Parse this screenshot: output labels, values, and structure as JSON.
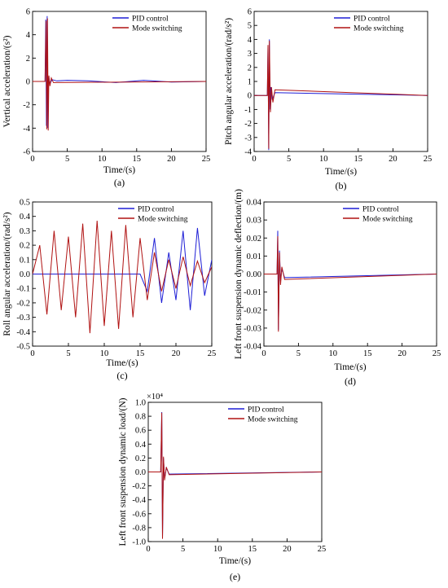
{
  "chart_data": [
    {
      "type": "line",
      "panel": "(a)",
      "ylabel": "Vertical acceleration/(s²)",
      "xlabel": "Time/(s)",
      "xlim": [
        0,
        25
      ],
      "ylim": [
        -6,
        6
      ],
      "xticks": [
        0,
        5,
        10,
        15,
        20,
        25
      ],
      "xtick_labels": [
        "0",
        "5",
        "10",
        "15",
        "20",
        "25"
      ],
      "yticks": [
        -6,
        -4,
        -2,
        0,
        2,
        4,
        6
      ],
      "ytick_labels": [
        "-6",
        "-4",
        "-2",
        "0",
        "2",
        "4",
        "6"
      ],
      "legend": "top-right",
      "series": [
        {
          "name": "PID control",
          "color": "#1f1fd6",
          "x": [
            0,
            1.8,
            1.9,
            2.0,
            2.1,
            2.2,
            2.3,
            2.5,
            2.8,
            3.5,
            5,
            8,
            12,
            16,
            20,
            25
          ],
          "y": [
            0,
            0,
            5.3,
            -3.8,
            5.6,
            -4.0,
            0.4,
            -0.2,
            0.15,
            0.05,
            0.1,
            0.05,
            -0.1,
            0.1,
            -0.05,
            0
          ]
        },
        {
          "name": "Mode switching",
          "color": "#b01212",
          "x": [
            0,
            1.8,
            1.95,
            2.05,
            2.15,
            2.25,
            2.35,
            2.5,
            2.7,
            3.0,
            25
          ],
          "y": [
            0,
            0,
            5.2,
            -4.1,
            5.4,
            -4.2,
            0.5,
            -0.4,
            0.3,
            -0.1,
            0
          ]
        }
      ]
    },
    {
      "type": "line",
      "panel": "(b)",
      "ylabel": "Pitch angular acceleration/(rad/s²)",
      "xlabel": "Time/(s)",
      "xlim": [
        0,
        25
      ],
      "ylim": [
        -4,
        6
      ],
      "xticks": [
        0,
        5,
        10,
        15,
        20,
        25
      ],
      "xtick_labels": [
        "0",
        "5",
        "10",
        "15",
        "20",
        "25"
      ],
      "yticks": [
        -4,
        -3,
        -2,
        -1,
        0,
        1,
        2,
        3,
        4,
        5,
        6
      ],
      "ytick_labels": [
        "-4",
        "-3",
        "-2",
        "-1",
        "0",
        "1",
        "2",
        "3",
        "4",
        "5",
        "6"
      ],
      "legend": "top-right",
      "series": [
        {
          "name": "PID control",
          "color": "#1f1fd6",
          "x": [
            0,
            1.9,
            2.0,
            2.1,
            2.2,
            2.3,
            2.4,
            2.6,
            3.0,
            25
          ],
          "y": [
            0,
            0,
            3.5,
            -3.9,
            4.0,
            -1.0,
            0.6,
            -0.3,
            0.2,
            0
          ]
        },
        {
          "name": "Mode switching",
          "color": "#b01212",
          "x": [
            0,
            1.9,
            2.0,
            2.1,
            2.2,
            2.35,
            2.5,
            2.7,
            3.0,
            25
          ],
          "y": [
            0,
            0,
            3.6,
            -3.8,
            3.9,
            -1.2,
            0.6,
            -0.5,
            0.4,
            0
          ]
        }
      ]
    },
    {
      "type": "line",
      "panel": "(c)",
      "ylabel": "Roll angular acceleration/(rad/s²)",
      "xlabel": "Time/(s)",
      "xlim": [
        0,
        25
      ],
      "ylim": [
        -0.5,
        0.5
      ],
      "xticks": [
        0,
        5,
        10,
        15,
        20,
        25
      ],
      "xtick_labels": [
        "0",
        "5",
        "10",
        "15",
        "20",
        "25"
      ],
      "yticks": [
        -0.5,
        -0.4,
        -0.3,
        -0.2,
        -0.1,
        0,
        0.1,
        0.2,
        0.3,
        0.4,
        0.5
      ],
      "ytick_labels": [
        "-0.5",
        "-0.4",
        "-0.3",
        "-0.2",
        "-0.1",
        "0.0",
        "0.1",
        "0.2",
        "0.3",
        "0.4",
        "0.5"
      ],
      "legend": "top-right",
      "series": [
        {
          "name": "PID control",
          "color": "#1f1fd6",
          "x": [
            0,
            15,
            16,
            17,
            18,
            19,
            20,
            21,
            22,
            23,
            24,
            25
          ],
          "y": [
            0,
            0,
            -0.12,
            0.25,
            -0.2,
            0.15,
            -0.18,
            0.3,
            -0.25,
            0.32,
            -0.15,
            0.1
          ]
        },
        {
          "name": "Mode switching",
          "color": "#b01212",
          "x": [
            0,
            1,
            2,
            3,
            4,
            5,
            6,
            7,
            8,
            9,
            10,
            11,
            12,
            13,
            14,
            15,
            16,
            17,
            18,
            19,
            20,
            21,
            22,
            23,
            24,
            25
          ],
          "y": [
            0,
            0.2,
            -0.28,
            0.3,
            -0.25,
            0.26,
            -0.3,
            0.35,
            -0.41,
            0.37,
            -0.36,
            0.3,
            -0.38,
            0.34,
            -0.3,
            0.25,
            -0.18,
            0.15,
            -0.12,
            0.1,
            -0.1,
            0.12,
            -0.08,
            0.09,
            -0.06,
            0.05
          ]
        }
      ]
    },
    {
      "type": "line",
      "panel": "(d)",
      "ylabel": "Left front suspension dynamic deflection/(m)",
      "xlabel": "Time/(s)",
      "xlim": [
        0,
        25
      ],
      "ylim": [
        -0.04,
        0.04
      ],
      "xticks": [
        0,
        5,
        10,
        15,
        20,
        25
      ],
      "xtick_labels": [
        "0",
        "5",
        "10",
        "15",
        "20",
        "25"
      ],
      "yticks": [
        -0.04,
        -0.03,
        -0.02,
        -0.01,
        0,
        0.01,
        0.02,
        0.03,
        0.04
      ],
      "ytick_labels": [
        "-0.04",
        "-0.03",
        "-0.02",
        "-0.01",
        "0.00",
        "0.01",
        "0.02",
        "0.03",
        "0.04"
      ],
      "legend": "top-right",
      "series": [
        {
          "name": "PID control",
          "color": "#1f1fd6",
          "x": [
            0,
            1.9,
            2.0,
            2.1,
            2.25,
            2.4,
            2.6,
            3.0,
            25
          ],
          "y": [
            0,
            0,
            0.024,
            -0.031,
            0.013,
            -0.004,
            0.003,
            -0.002,
            0
          ]
        },
        {
          "name": "Mode switching",
          "color": "#b01212",
          "x": [
            0,
            1.9,
            2.0,
            2.1,
            2.25,
            2.4,
            2.6,
            3.0,
            25
          ],
          "y": [
            0,
            0,
            0.021,
            -0.032,
            0.012,
            -0.006,
            0.004,
            -0.003,
            0
          ]
        }
      ]
    },
    {
      "type": "line",
      "panel": "(e)",
      "ylabel": "Left front suspension dynamic load/(N)",
      "xlabel": "Time/(s)",
      "y_multiplier": "×10⁴",
      "xlim": [
        0,
        25
      ],
      "ylim": [
        -1.0,
        1.0
      ],
      "xticks": [
        0,
        5,
        10,
        15,
        20,
        25
      ],
      "xtick_labels": [
        "0",
        "5",
        "10",
        "15",
        "20",
        "25"
      ],
      "yticks": [
        -1.0,
        -0.8,
        -0.6,
        -0.4,
        -0.2,
        0,
        0.2,
        0.4,
        0.6,
        0.8,
        1.0
      ],
      "ytick_labels": [
        "-1.0",
        "-0.8",
        "-0.6",
        "-0.4",
        "-0.2",
        "0.0",
        "0.2",
        "0.4",
        "0.6",
        "0.8",
        "1.0"
      ],
      "legend": "top-right",
      "series": [
        {
          "name": "PID control",
          "color": "#1f1fd6",
          "x": [
            0,
            1.8,
            1.95,
            2.05,
            2.2,
            2.35,
            2.6,
            3.0,
            25
          ],
          "y": [
            0,
            0,
            0.86,
            -0.95,
            0.2,
            -0.1,
            0.06,
            -0.03,
            0
          ]
        },
        {
          "name": "Mode switching",
          "color": "#b01212",
          "x": [
            0,
            1.8,
            1.95,
            2.05,
            2.2,
            2.35,
            2.6,
            3.0,
            25
          ],
          "y": [
            0,
            0,
            0.85,
            -0.96,
            0.22,
            -0.12,
            0.07,
            -0.04,
            0
          ]
        }
      ]
    }
  ]
}
